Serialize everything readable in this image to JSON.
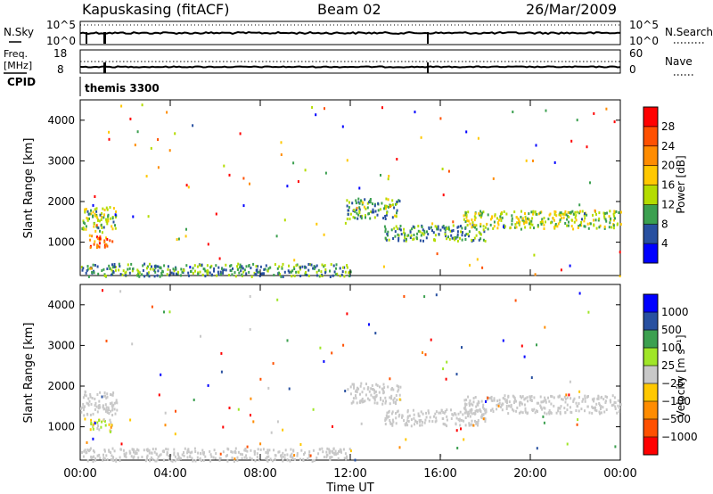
{
  "header": {
    "station": "Kapuskasing (fitACF)",
    "beam": "Beam 02",
    "date": "26/Mar/2009"
  },
  "noise_panel": {
    "left_label": "N.Sky",
    "right_label": "N.Search",
    "left_ticks": [
      "10^5",
      "10^0"
    ],
    "right_ticks": [
      "10^5",
      "10^0"
    ]
  },
  "freq_panel": {
    "left_label": "Freq.",
    "left_unit": "[MHz]",
    "right_label": "Nave",
    "left_ticks": [
      "18",
      "8"
    ],
    "right_ticks": [
      "60",
      "0"
    ]
  },
  "cpid": {
    "label": "CPID",
    "program": "themis 3300"
  },
  "chart_data": [
    {
      "type": "heatmap",
      "name": "power",
      "ylabel": "Slant Range [km]",
      "y_ticks": [
        "4000",
        "3000",
        "2000",
        "1000"
      ],
      "ylim": [
        180,
        4500
      ],
      "xlim": [
        0,
        24
      ],
      "colorbar": {
        "label": "Power [dB]",
        "ticks": [
          "28",
          "24",
          "20",
          "16",
          "12",
          "8",
          "4"
        ],
        "colors": [
          "#0000ff",
          "#2850a0",
          "#3ca050",
          "#b4dc00",
          "#ffc800",
          "#ff8c00",
          "#ff5000",
          "#ff0000"
        ],
        "range": [
          0,
          30
        ]
      },
      "clusters": [
        {
          "x0": 0.0,
          "x1": 1.6,
          "y0": 1300,
          "y1": 1900,
          "level": 0.4
        },
        {
          "x0": 0.4,
          "x1": 1.4,
          "y0": 900,
          "y1": 1200,
          "level": 0.75
        },
        {
          "x0": 11.8,
          "x1": 14.2,
          "y0": 1600,
          "y1": 2100,
          "level": 0.35
        },
        {
          "x0": 13.5,
          "x1": 18.0,
          "y0": 1050,
          "y1": 1450,
          "level": 0.3
        },
        {
          "x0": 17.0,
          "x1": 24.0,
          "y0": 1350,
          "y1": 1800,
          "level": 0.45
        },
        {
          "x0": 0.0,
          "x1": 12.0,
          "y0": 180,
          "y1": 500,
          "level": 0.3
        }
      ]
    },
    {
      "type": "heatmap",
      "name": "velocity",
      "ylabel": "Slant Range [km]",
      "y_ticks": [
        "4000",
        "3000",
        "2000",
        "1000"
      ],
      "ylim": [
        180,
        4500
      ],
      "xlim": [
        0,
        24
      ],
      "xlabel": "Time UT",
      "x_ticks": [
        "00:00",
        "04:00",
        "08:00",
        "12:00",
        "16:00",
        "20:00",
        "00:00"
      ],
      "colorbar": {
        "label": "Velocity [m s⁻¹]",
        "ticks": [
          "1000",
          "500",
          "100",
          "25",
          "−25",
          "−100",
          "−500",
          "−1000"
        ],
        "colors": [
          "#ff0000",
          "#ff5000",
          "#ff8c00",
          "#ffc800",
          "#c8c8c8",
          "#a0e628",
          "#3ca050",
          "#2850a0",
          "#0000ff"
        ],
        "range": [
          -1500,
          1500
        ]
      },
      "clusters": [
        {
          "x0": 0.0,
          "x1": 1.6,
          "y0": 1300,
          "y1": 1900,
          "level": 0.0
        },
        {
          "x0": 0.4,
          "x1": 1.4,
          "y0": 900,
          "y1": 1200,
          "level": 0.5
        },
        {
          "x0": 11.8,
          "x1": 14.2,
          "y0": 1600,
          "y1": 2100,
          "level": 0.0
        },
        {
          "x0": 13.5,
          "x1": 18.0,
          "y0": 1050,
          "y1": 1450,
          "level": 0.0
        },
        {
          "x0": 17.0,
          "x1": 24.0,
          "y0": 1350,
          "y1": 1800,
          "level": 0.0
        },
        {
          "x0": 0.0,
          "x1": 12.0,
          "y0": 180,
          "y1": 500,
          "level": 0.0
        }
      ]
    }
  ]
}
